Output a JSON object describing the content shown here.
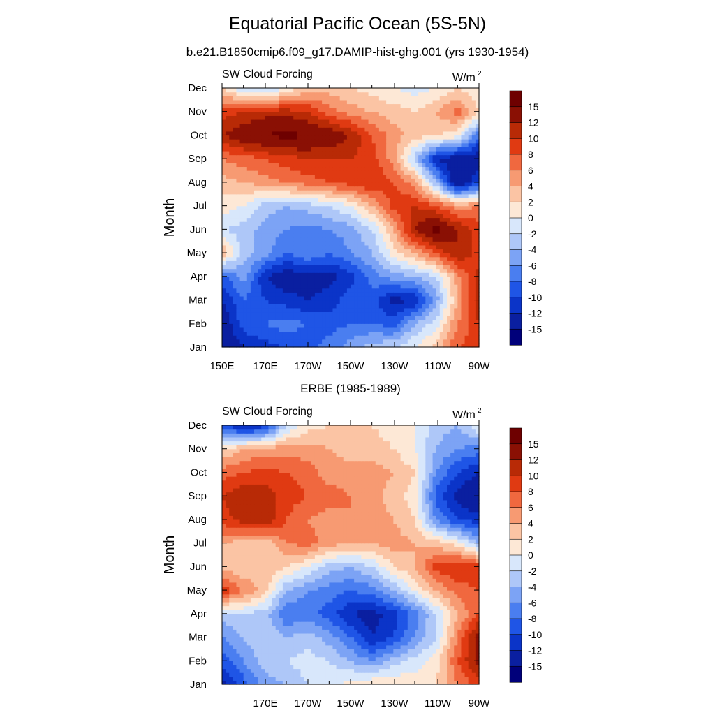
{
  "title": "Equatorial Pacific Ocean (5S-5N)",
  "subtitle": "b.e21.B1850cmip6.f09_g17.DAMIP-hist-ghg.001 (yrs 1930-1954)",
  "colors": {
    "levels": [
      -15,
      -12,
      -10,
      -8,
      -6,
      -4,
      -2,
      0,
      2,
      4,
      6,
      8,
      10,
      12,
      15
    ],
    "fill": [
      "#00007a",
      "#0a1fa0",
      "#0b34c8",
      "#1f55e6",
      "#4a7ef0",
      "#7ca3f5",
      "#aec7f8",
      "#d8e7fb",
      "#fde8d6",
      "#fbc4a4",
      "#f79a72",
      "#f0683f",
      "#e03a12",
      "#b82a06",
      "#8a1004",
      "#6e0000"
    ]
  },
  "chart_data": [
    {
      "type": "heatmap",
      "panel_title": "",
      "left_string": "SW Cloud Forcing",
      "units_string": "W/m",
      "units_superscript": "2",
      "ylabel": "Month",
      "x_tick_labels": [
        "150E",
        "170E",
        "170W",
        "150W",
        "130W",
        "110W",
        "90W"
      ],
      "y_tick_labels": [
        "Jan",
        "Feb",
        "Mar",
        "Apr",
        "May",
        "Jun",
        "Jul",
        "Aug",
        "Sep",
        "Oct",
        "Nov",
        "Dec"
      ],
      "colorbar_labels": [
        "15",
        "12",
        "10",
        "8",
        "6",
        "4",
        "2",
        "0",
        "-2",
        "-4",
        "-6",
        "-8",
        "-10",
        "-12",
        "-15"
      ],
      "x": [
        150,
        160,
        170,
        180,
        190,
        200,
        210,
        220,
        230,
        240,
        250,
        260,
        270
      ],
      "y": [
        "Jan",
        "Feb",
        "Mar",
        "Apr",
        "May",
        "Jun",
        "Jul",
        "Aug",
        "Sep",
        "Oct",
        "Nov",
        "Dec"
      ],
      "values": [
        [
          -15,
          -12,
          -11,
          -10,
          -9,
          -7,
          -5,
          -3,
          -2,
          0,
          3,
          8,
          9
        ],
        [
          -14,
          -9,
          -8,
          -7,
          -8,
          -9,
          -8,
          -8,
          -9,
          -4,
          -1,
          6,
          10
        ],
        [
          -12,
          -8,
          -10,
          -11,
          -12,
          -11,
          -9,
          -9,
          -13,
          -12,
          -5,
          4,
          12
        ],
        [
          -9,
          -5,
          -12,
          -14,
          -13,
          -13,
          -11,
          -7,
          -5,
          -4,
          -2,
          5,
          11
        ],
        [
          4,
          -3,
          -5,
          -8,
          -6,
          -8,
          -6,
          -4,
          1,
          4,
          8,
          12,
          9
        ],
        [
          -2,
          -3,
          -5,
          -6,
          -7,
          -6,
          -5,
          -2,
          4,
          12,
          16,
          12,
          9
        ],
        [
          1,
          0,
          -3,
          -4,
          -3,
          -2,
          0,
          4,
          9,
          10,
          8,
          5,
          6
        ],
        [
          3,
          4,
          5,
          6,
          7,
          8,
          9,
          10,
          8,
          5,
          -4,
          -15,
          -10
        ],
        [
          6,
          7,
          8,
          9,
          10,
          10,
          10,
          9,
          5,
          -3,
          -12,
          -14,
          -14
        ],
        [
          12,
          14,
          15,
          16,
          15,
          14,
          12,
          8,
          5,
          3,
          2,
          1,
          -8
        ],
        [
          9,
          10,
          11,
          11,
          10,
          7,
          5,
          4,
          3,
          2,
          4,
          7,
          2
        ],
        [
          2,
          -2,
          -3,
          0,
          3,
          3,
          2,
          1,
          0,
          -1,
          0,
          2,
          0
        ]
      ]
    },
    {
      "type": "heatmap",
      "panel_title": "ERBE (1985-1989)",
      "left_string": "SW Cloud Forcing",
      "units_string": "W/m",
      "units_superscript": "2",
      "ylabel": "Month",
      "x_tick_labels": [
        "170E",
        "170W",
        "150W",
        "130W",
        "110W",
        "90W"
      ],
      "y_tick_labels": [
        "Jan",
        "Feb",
        "Mar",
        "Apr",
        "May",
        "Jun",
        "Jul",
        "Aug",
        "Sep",
        "Oct",
        "Nov",
        "Dec"
      ],
      "colorbar_labels": [
        "15",
        "12",
        "10",
        "8",
        "6",
        "4",
        "2",
        "0",
        "-2",
        "-4",
        "-6",
        "-8",
        "-10",
        "-12",
        "-15"
      ],
      "x": [
        150,
        160,
        170,
        180,
        190,
        200,
        210,
        220,
        230,
        240,
        250,
        260,
        270
      ],
      "y": [
        "Jan",
        "Feb",
        "Mar",
        "Apr",
        "May",
        "Jun",
        "Jul",
        "Aug",
        "Sep",
        "Oct",
        "Nov",
        "Dec"
      ],
      "values": [
        [
          -13,
          -9,
          -5,
          -4,
          -2,
          -1,
          1,
          2,
          2,
          1,
          2,
          6,
          9
        ],
        [
          -9,
          -6,
          -3,
          -2,
          -1,
          -2,
          -4,
          -6,
          -3,
          -1,
          1,
          8,
          13
        ],
        [
          -6,
          -4,
          -2,
          -4,
          -3,
          -5,
          -8,
          -12,
          -10,
          -6,
          -2,
          6,
          14
        ],
        [
          -3,
          -2,
          -3,
          -8,
          -7,
          -9,
          -12,
          -13,
          -11,
          -7,
          -2,
          4,
          8
        ],
        [
          10,
          6,
          3,
          -4,
          -6,
          -7,
          -8,
          -7,
          -4,
          0,
          4,
          7,
          8
        ],
        [
          3,
          2,
          4,
          2,
          0,
          -3,
          -4,
          -2,
          2,
          4,
          9,
          10,
          9
        ],
        [
          4,
          3,
          2,
          6,
          7,
          5,
          4,
          4,
          5,
          4,
          3,
          1,
          -4
        ],
        [
          9,
          11,
          12,
          8,
          6,
          5,
          6,
          5,
          4,
          2,
          -6,
          -10,
          -11
        ],
        [
          10,
          12,
          11,
          9,
          8,
          7,
          6,
          5,
          3,
          1,
          -9,
          -13,
          -15
        ],
        [
          7,
          8,
          9,
          8,
          7,
          5,
          5,
          5,
          4,
          2,
          -6,
          -10,
          -12
        ],
        [
          2,
          4,
          5,
          5,
          5,
          4,
          3,
          3,
          2,
          0,
          -4,
          -6,
          -7
        ],
        [
          -9,
          -13,
          -11,
          -2,
          1,
          2,
          2,
          2,
          1,
          0,
          -3,
          -4,
          0
        ]
      ]
    }
  ]
}
